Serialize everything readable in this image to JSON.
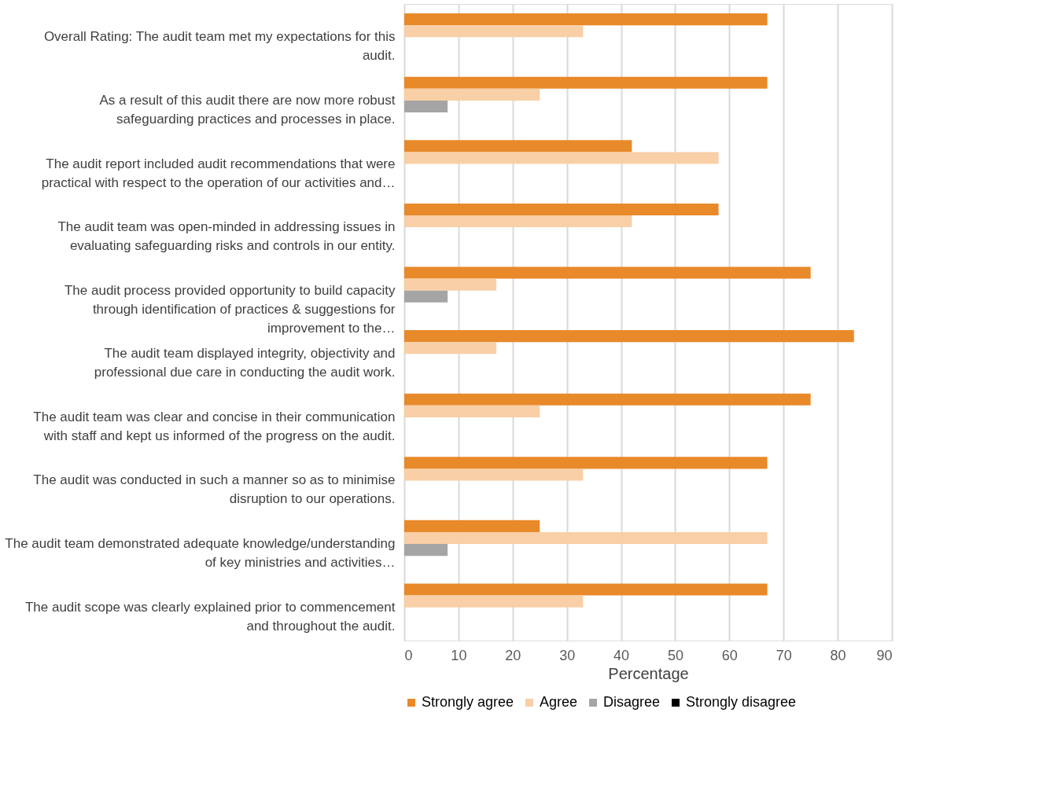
{
  "chart_data": {
    "type": "bar",
    "orientation": "horizontal",
    "xlabel": "Percentage",
    "categories": [
      "Overall Rating: The audit team met my expectations for this audit.",
      "As a result of this audit there are now more robust safeguarding practices and processes in place.",
      "The audit report included audit recommendations that were practical with respect to the operation of our activities and…",
      "The audit team was open-minded in addressing issues in evaluating safeguarding risks and controls in our entity.",
      "The audit process provided opportunity to build capacity through identification of practices & suggestions for improvement to the…",
      "The audit team displayed integrity, objectivity and professional due care in conducting the audit work.",
      "The audit team was clear and concise in their communication with staff and kept us informed of the progress on the audit.",
      "The audit was conducted in such a manner so as to minimise disruption to our operations.",
      "The audit team demonstrated adequate knowledge/understanding  of key ministries and activities…",
      "The audit scope was clearly explained prior to commencement and throughout the audit."
    ],
    "series": [
      {
        "name": "Strongly agree",
        "color": "#e8892a",
        "values": [
          67,
          67,
          42,
          58,
          75,
          83,
          75,
          67,
          25,
          67
        ]
      },
      {
        "name": "Agree",
        "color": "#f8cfa6",
        "values": [
          33,
          25,
          58,
          42,
          17,
          17,
          25,
          33,
          67,
          33
        ]
      },
      {
        "name": "Disagree",
        "color": "#a5a5a5",
        "values": [
          0,
          8,
          0,
          0,
          8,
          0,
          0,
          0,
          8,
          0
        ]
      },
      {
        "name": "Strongly disagree",
        "color": "#000000",
        "values": [
          0,
          0,
          0,
          0,
          0,
          0,
          0,
          0,
          0,
          0
        ]
      }
    ],
    "xlim": [
      0,
      90
    ],
    "xticks": [
      0,
      10,
      20,
      30,
      40,
      50,
      60,
      70,
      80,
      90
    ],
    "grid": "x",
    "legend": "bottom"
  }
}
